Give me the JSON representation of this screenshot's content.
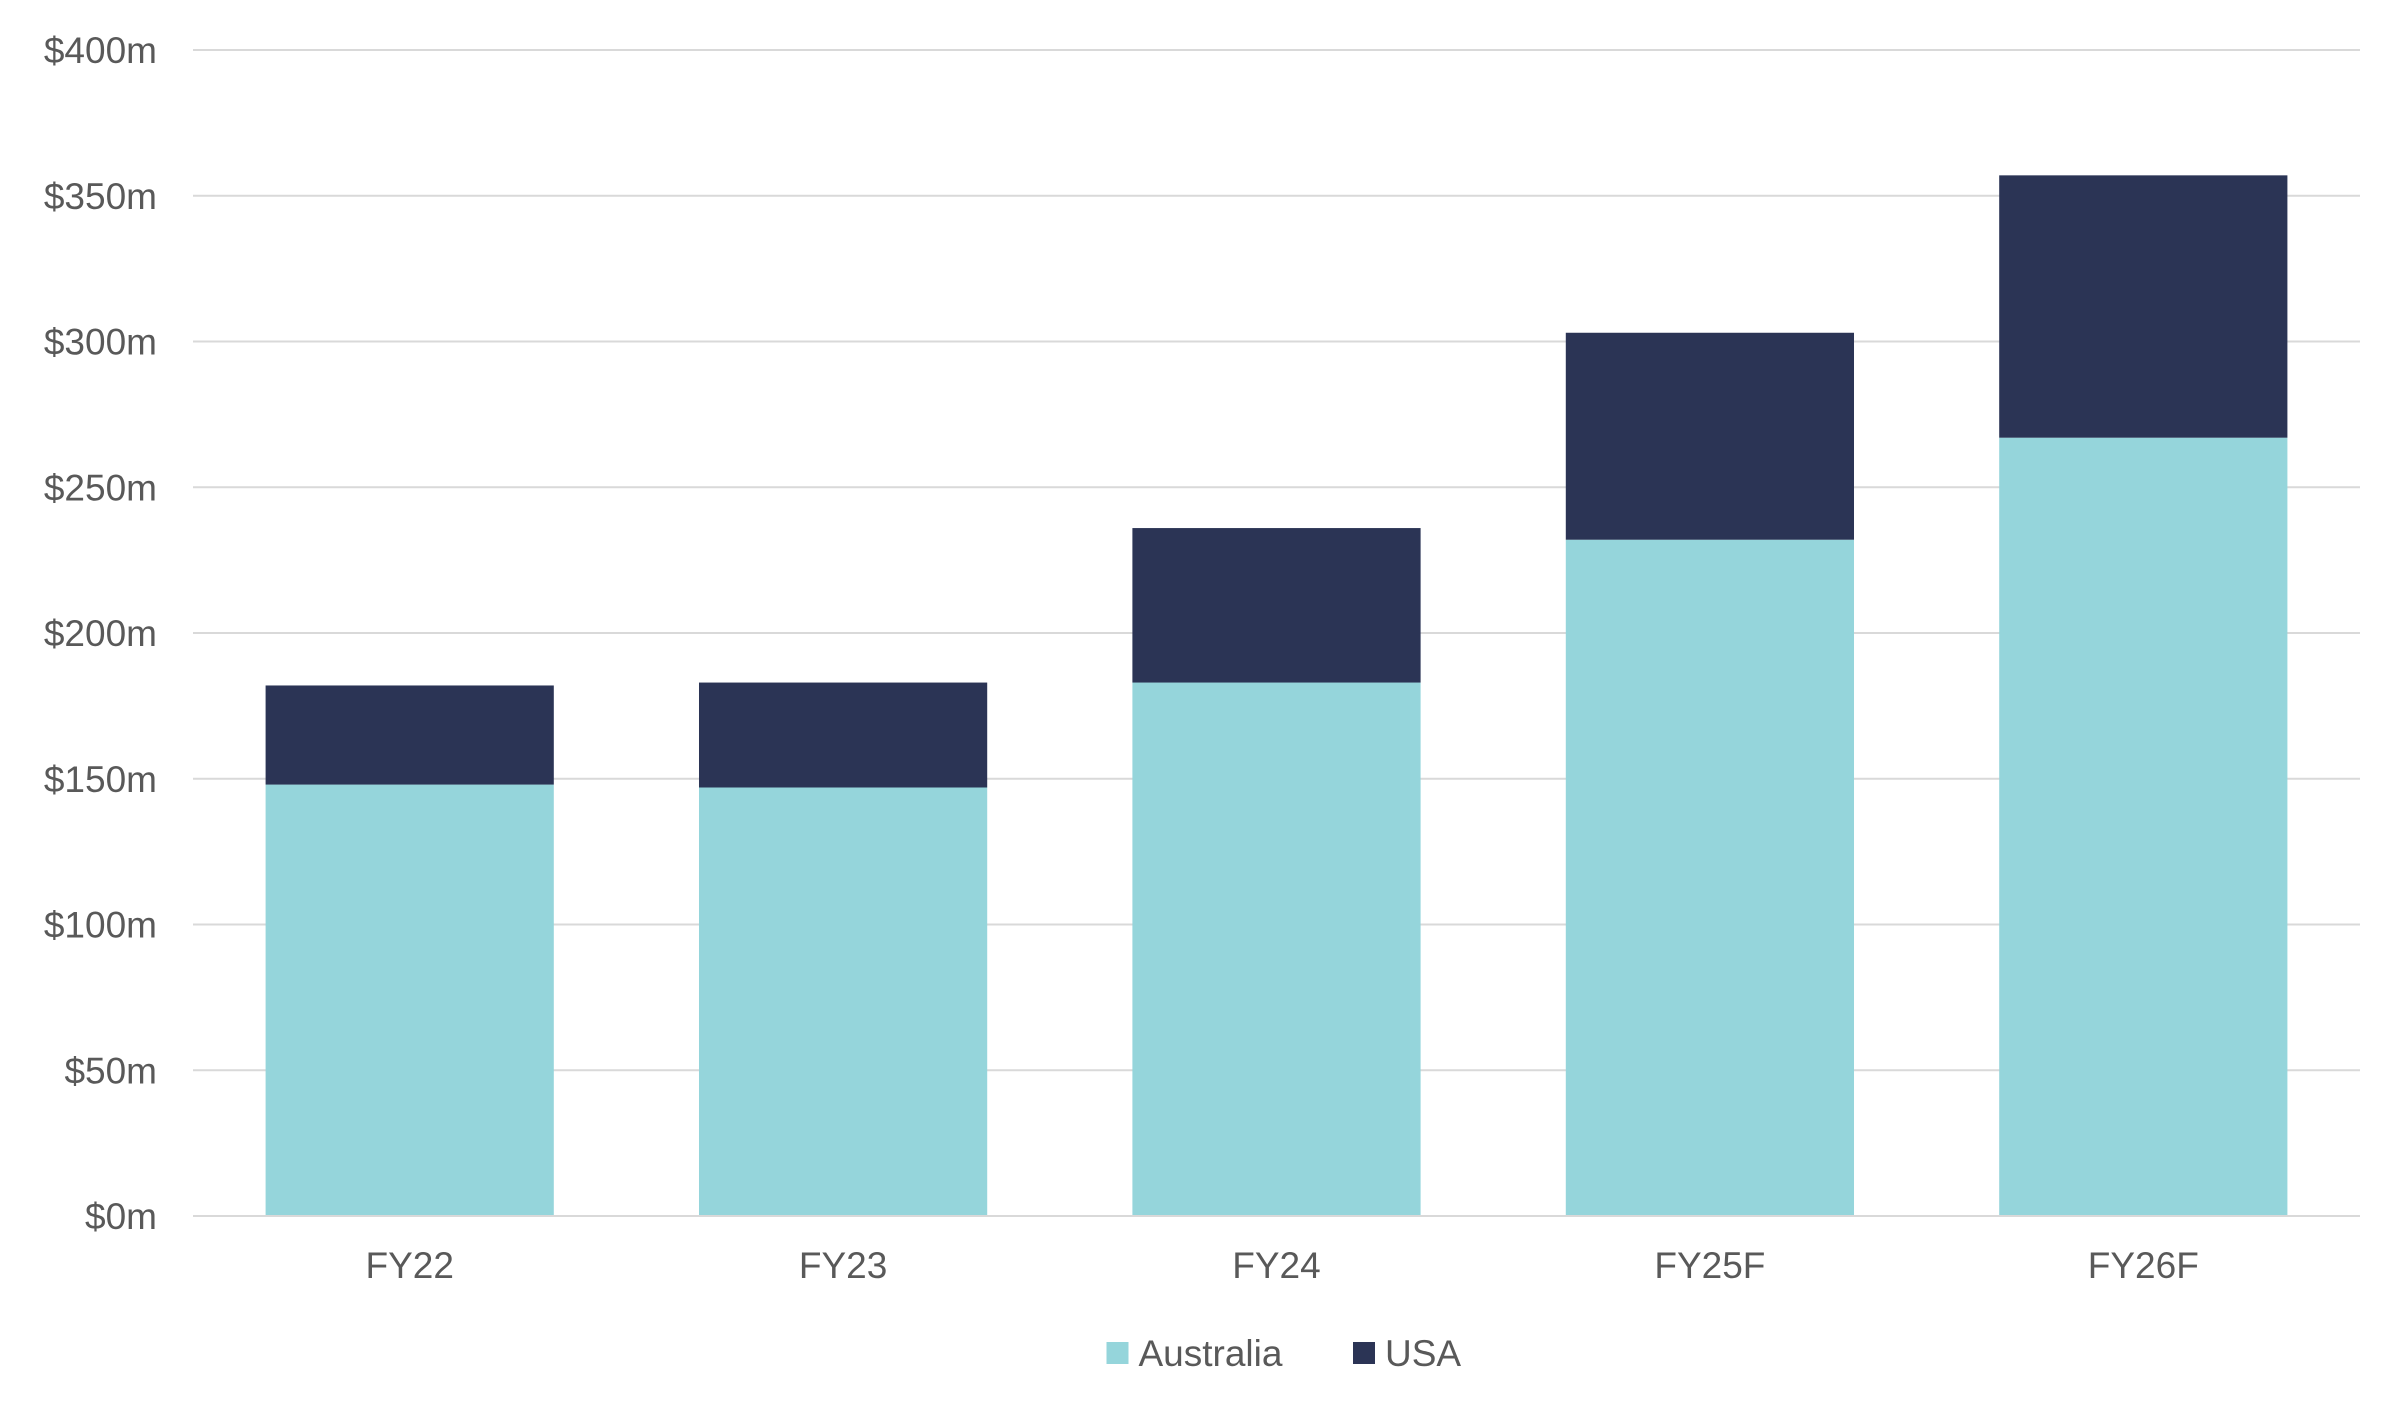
{
  "chart_data": {
    "type": "bar",
    "stacked": true,
    "categories": [
      "FY22",
      "FY23",
      "FY24",
      "FY25F",
      "FY26F"
    ],
    "series": [
      {
        "name": "Australia",
        "color": "#95d5db",
        "values": [
          148,
          147,
          183,
          232,
          267
        ]
      },
      {
        "name": "USA",
        "color": "#2b3455",
        "values": [
          34,
          36,
          53,
          71,
          90
        ]
      }
    ],
    "ylim": [
      0,
      400
    ],
    "yticks": [
      0,
      50,
      100,
      150,
      200,
      250,
      300,
      350,
      400
    ],
    "ytick_labels": [
      "$0m",
      "$50m",
      "$100m",
      "$150m",
      "$200m",
      "$250m",
      "$300m",
      "$350m",
      "$400m"
    ],
    "grid": true,
    "legend_position": "bottom-center",
    "title": "",
    "xlabel": "",
    "ylabel": ""
  }
}
